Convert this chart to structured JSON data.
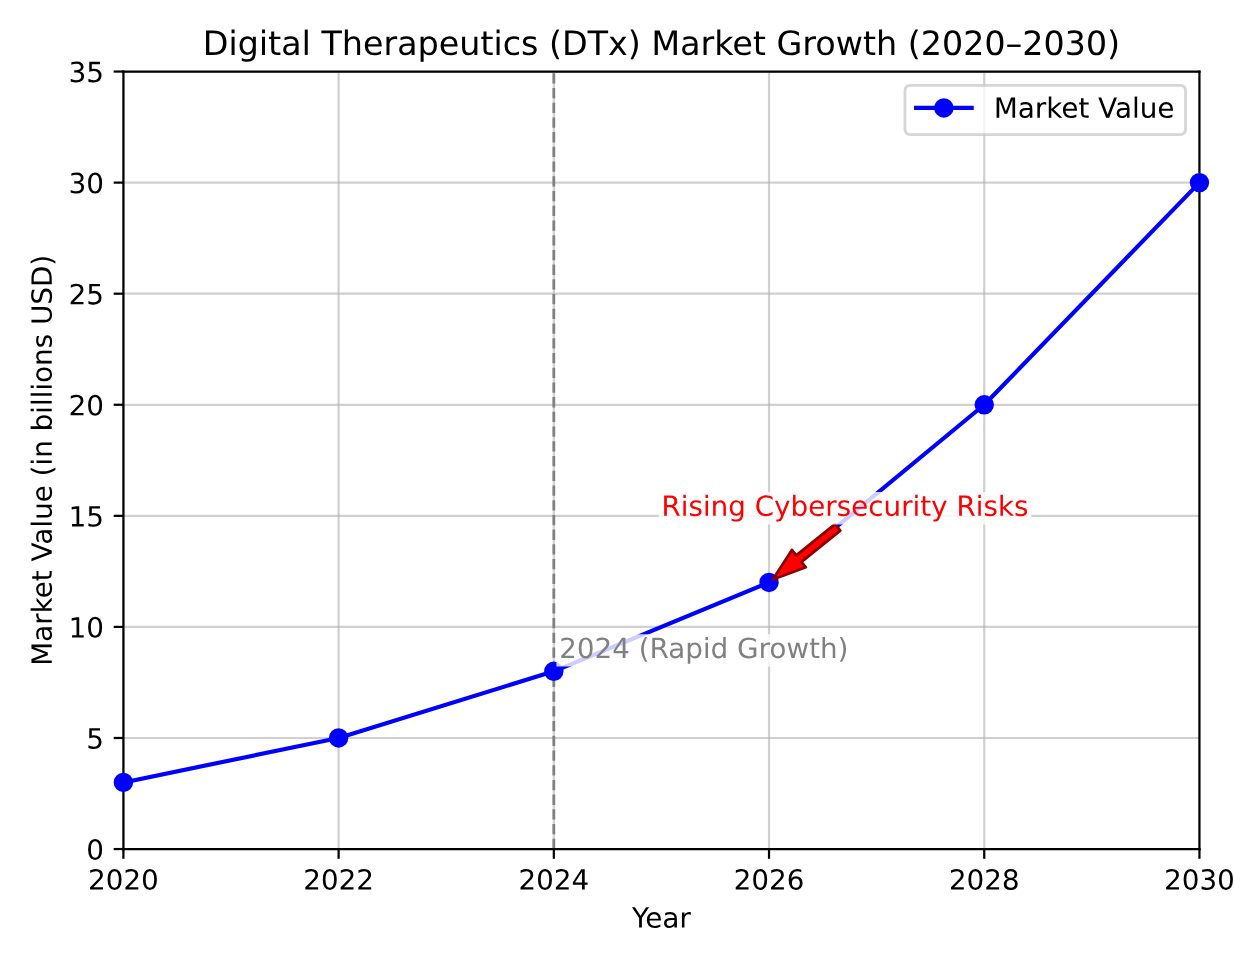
{
  "chart_data": {
    "type": "line",
    "title": "Digital Therapeutics (DTx) Market Growth (2020–2030)",
    "xlabel": "Year",
    "ylabel": "Market Value (in billions USD)",
    "x": [
      2020,
      2022,
      2024,
      2026,
      2028,
      2030
    ],
    "series": [
      {
        "name": "Market Value",
        "color": "#0000ff",
        "values": [
          3,
          5,
          8,
          12,
          20,
          30
        ]
      }
    ],
    "xlim": [
      2020,
      2030
    ],
    "xticks": [
      2020,
      2022,
      2024,
      2026,
      2028,
      2030
    ],
    "ylim": [
      0,
      35
    ],
    "yticks": [
      0,
      5,
      10,
      15,
      20,
      25,
      30,
      35
    ],
    "grid": true,
    "legend": "top right",
    "marker": "circle",
    "line_style": "solid",
    "ref_lines": [
      {
        "axis": "x",
        "value": 2024,
        "label": "2024 (Rapid Growth)",
        "color": "#808080",
        "line_style": "dashed"
      }
    ],
    "annotations": [
      {
        "text": "Rising Cybersecurity Risks",
        "x": 2026,
        "y": 12
      }
    ]
  }
}
